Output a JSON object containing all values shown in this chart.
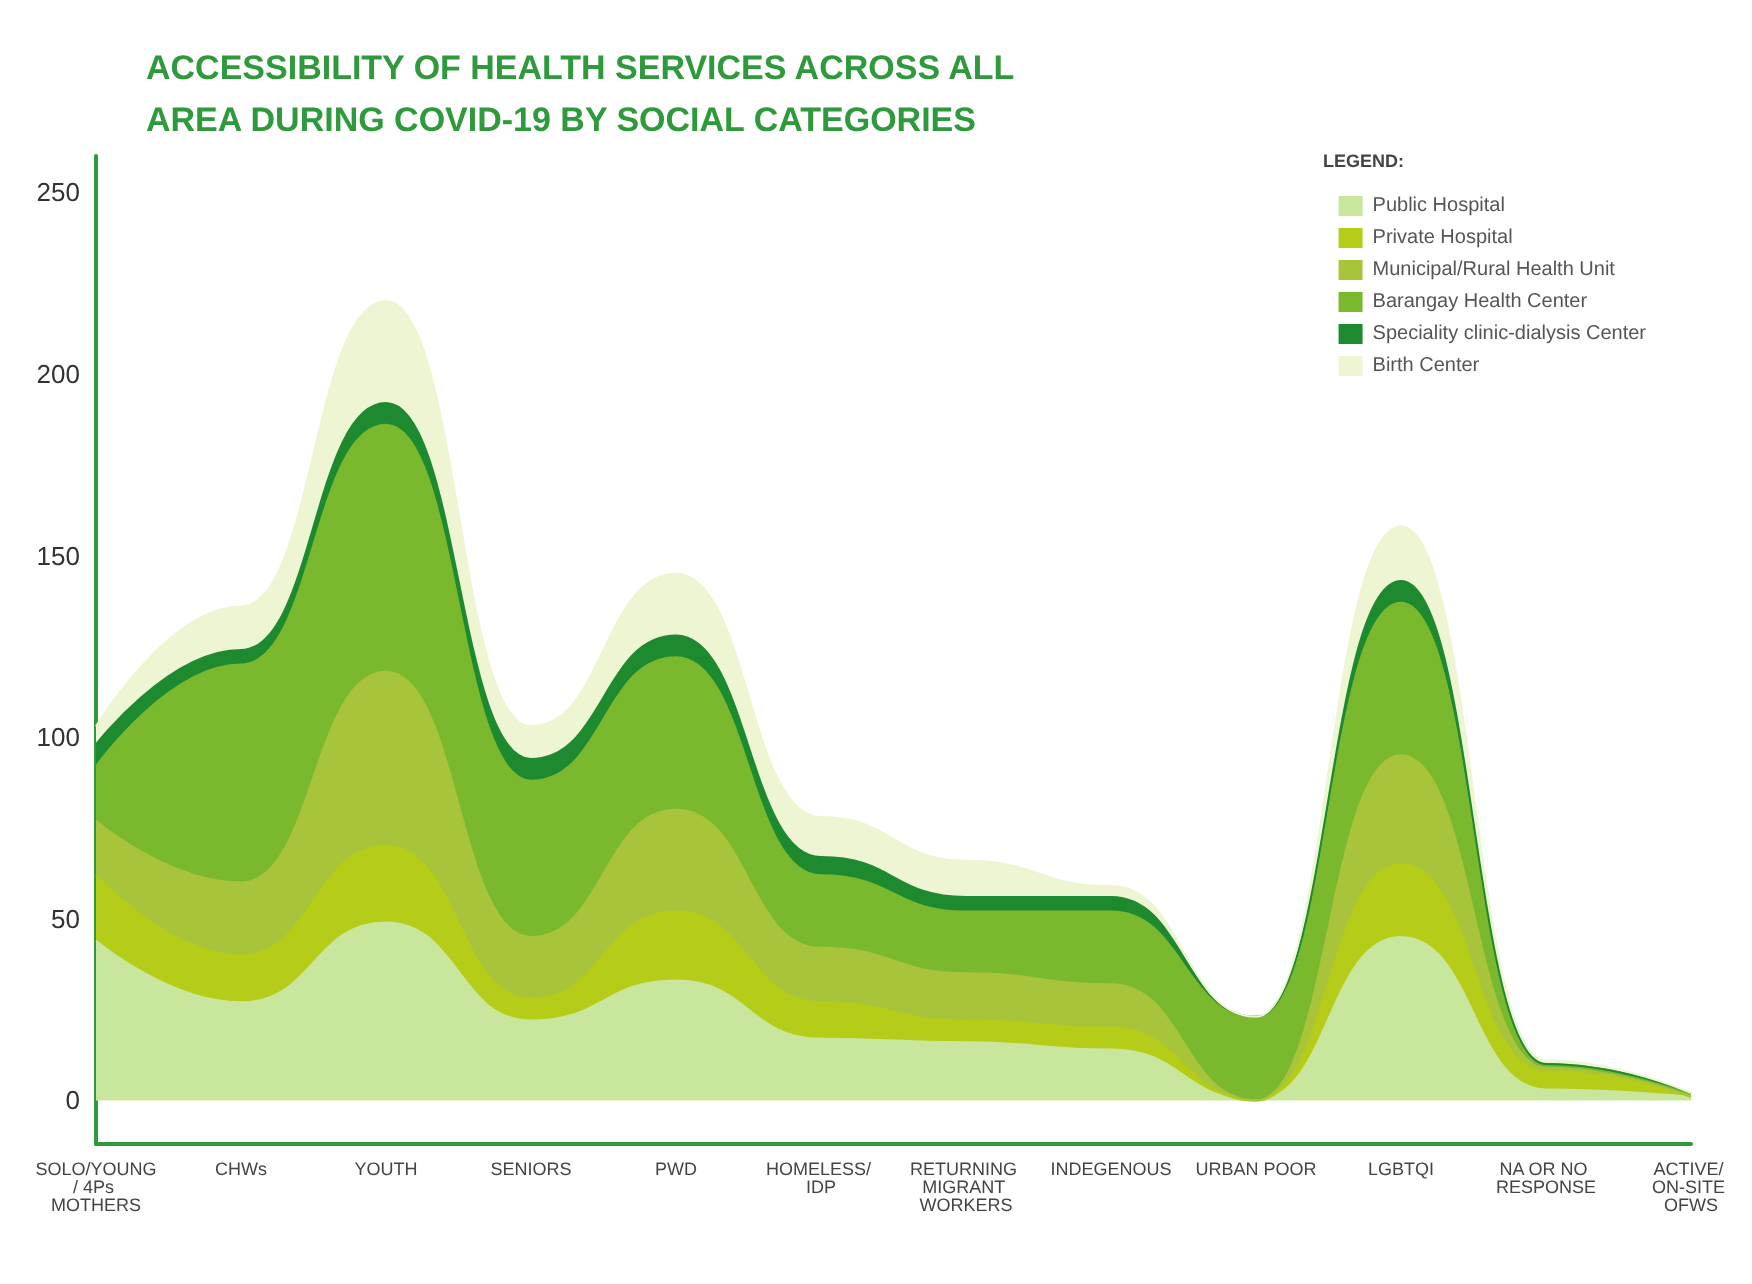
{
  "chart_data": {
    "type": "area",
    "title": "ACCESSIBILITY OF HEALTH SERVICES ACROSS ALL AREA DURING COVID-19 BY SOCIAL CATEGORIES",
    "legend_title": "LEGEND:",
    "categories": [
      "SOLO/YOUNG/ 4Ps MOTHERS",
      "CHWs",
      "YOUTH",
      "SENIORS",
      "PWD",
      "HOMELESS/ IDP",
      "RETURNING MIGRANT WORKERS",
      "INDEGENOUS",
      "URBAN POOR",
      "LGBTQI",
      "NA OR NO RESPONSE",
      "ACTIVE/ ON-SITE OFWS"
    ],
    "stacked": true,
    "series": [
      {
        "name": "Public Hospital",
        "color": "#c9e79c",
        "values": [
          44,
          27,
          49,
          22,
          33,
          17,
          16,
          14,
          0,
          45,
          3,
          1
        ]
      },
      {
        "name": "Private Hospital",
        "color": "#b5cc18",
        "values": [
          18,
          13,
          21,
          6,
          19,
          10,
          6,
          6,
          0,
          20,
          5,
          0
        ]
      },
      {
        "name": "Municipal/Rural Health Unit",
        "color": "#a8c43a",
        "values": [
          15,
          20,
          48,
          17,
          28,
          15,
          13,
          12,
          0,
          30,
          1,
          0
        ]
      },
      {
        "name": "Barangay Health Center",
        "color": "#7ab82e",
        "values": [
          15,
          60,
          68,
          43,
          42,
          20,
          17,
          20,
          23,
          42,
          1,
          1
        ]
      },
      {
        "name": "Speciality clinic-dialysis Center",
        "color": "#1e8a30",
        "values": [
          6,
          4,
          6,
          6,
          6,
          5,
          4,
          4,
          0,
          6,
          0,
          0
        ]
      },
      {
        "name": "Birth Center",
        "color": "#eef5d2",
        "values": [
          5,
          12,
          28,
          9,
          17,
          11,
          10,
          3,
          0,
          15,
          1,
          0
        ]
      }
    ],
    "ylim": [
      -12,
      260
    ],
    "yticks": [
      0,
      50,
      100,
      150,
      200,
      250
    ],
    "grid": false,
    "legend": "top right",
    "tick_labels": "y"
  }
}
